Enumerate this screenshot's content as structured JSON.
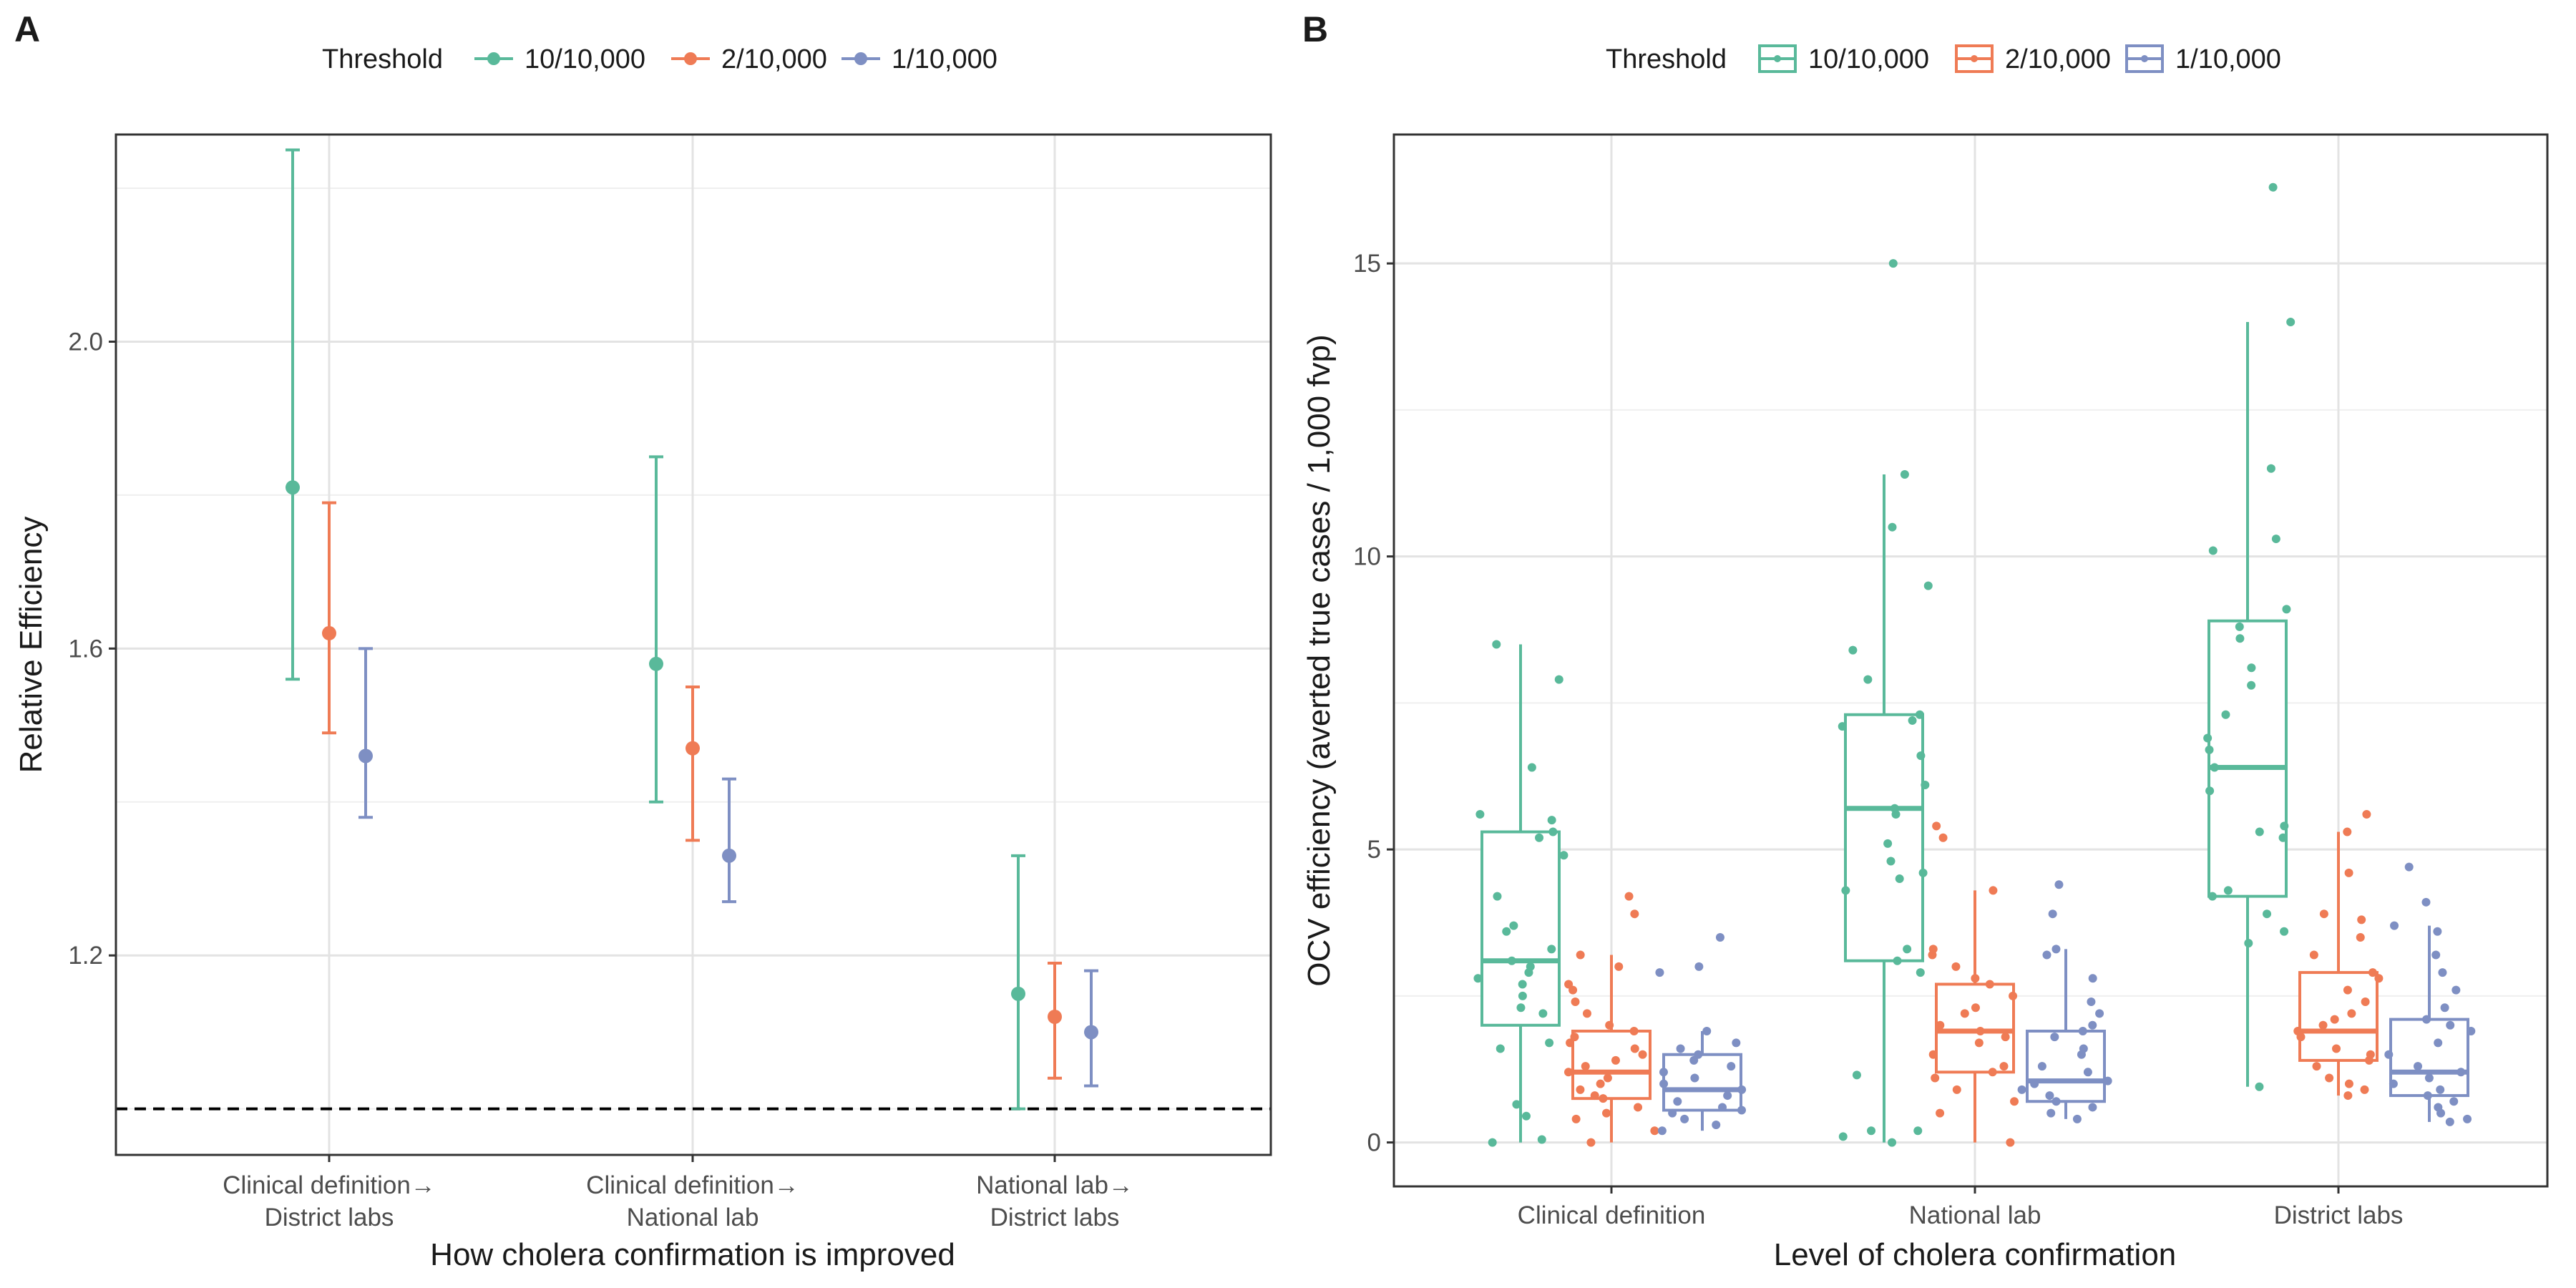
{
  "colors": {
    "t10": "#59b99a",
    "t2": "#ef7b55",
    "t1": "#7e8fc3",
    "grid_major": "#e3e3e3",
    "grid_minor": "#efefef",
    "frame": "#333333"
  },
  "chart_data": [
    {
      "panel": "A",
      "type": "scatter",
      "legend": {
        "title": "Threshold",
        "position": "top",
        "entries": [
          "10/10,000",
          "2/10,000",
          "1/10,000"
        ]
      },
      "xlabel": "How cholera confirmation is improved",
      "ylabel": "Relative Efficiency",
      "categories": [
        [
          "Clinical definition→",
          "District labs"
        ],
        [
          "Clinical definition→",
          "National lab"
        ],
        [
          "National lab→",
          "District labs"
        ]
      ],
      "yticks": [
        "1.2",
        "1.6",
        "2.0"
      ],
      "ylim": [
        0.94,
        2.27
      ],
      "reference_line": 1.0,
      "grid": true,
      "series": [
        {
          "name": "10/10,000",
          "points": [
            {
              "y": 1.81,
              "lo": 1.56,
              "hi": 2.25
            },
            {
              "y": 1.58,
              "lo": 1.4,
              "hi": 1.85
            },
            {
              "y": 1.15,
              "lo": 1.0,
              "hi": 1.33
            }
          ]
        },
        {
          "name": "2/10,000",
          "points": [
            {
              "y": 1.62,
              "lo": 1.49,
              "hi": 1.79
            },
            {
              "y": 1.47,
              "lo": 1.35,
              "hi": 1.55
            },
            {
              "y": 1.12,
              "lo": 1.04,
              "hi": 1.19
            }
          ]
        },
        {
          "name": "1/10,000",
          "points": [
            {
              "y": 1.46,
              "lo": 1.38,
              "hi": 1.6
            },
            {
              "y": 1.33,
              "lo": 1.27,
              "hi": 1.43
            },
            {
              "y": 1.1,
              "lo": 1.03,
              "hi": 1.18
            }
          ]
        }
      ]
    },
    {
      "panel": "B",
      "type": "box",
      "legend": {
        "title": "Threshold",
        "position": "top",
        "entries": [
          "10/10,000",
          "2/10,000",
          "1/10,000"
        ]
      },
      "xlabel": "Level of cholera confirmation",
      "ylabel": "OCV efficiency (averted true cases / 1,000 fvp)",
      "categories": [
        "Clinical definition",
        "National lab",
        "District labs"
      ],
      "yticks": [
        "0",
        "5",
        "10",
        "15"
      ],
      "ylim": [
        -0.75,
        17.2
      ],
      "grid": true,
      "series": [
        {
          "name": "10/10,000",
          "boxes": [
            {
              "min": 0.0,
              "q1": 2.0,
              "median": 3.1,
              "q3": 5.3,
              "max": 8.5,
              "points": [
                0.0,
                0.05,
                0.45,
                0.65,
                1.6,
                1.7,
                2.2,
                2.3,
                2.5,
                2.7,
                2.8,
                2.9,
                3.0,
                3.1,
                3.3,
                3.6,
                3.7,
                4.2,
                4.9,
                5.2,
                5.3,
                5.5,
                5.6,
                6.4,
                7.9,
                8.5
              ]
            },
            {
              "min": 0.0,
              "q1": 3.1,
              "median": 5.7,
              "q3": 7.3,
              "max": 11.4,
              "points": [
                0.0,
                0.1,
                0.2,
                0.2,
                1.15,
                2.9,
                3.1,
                3.3,
                4.3,
                4.5,
                4.6,
                4.8,
                5.1,
                5.6,
                5.7,
                6.1,
                6.6,
                7.1,
                7.2,
                7.3,
                7.9,
                8.4,
                9.5,
                10.5,
                11.4,
                15.0
              ]
            },
            {
              "min": 0.95,
              "q1": 4.2,
              "median": 6.4,
              "q3": 8.9,
              "max": 14.0,
              "points": [
                0.95,
                3.4,
                3.6,
                3.9,
                4.2,
                4.3,
                5.2,
                5.3,
                5.4,
                6.0,
                6.4,
                6.7,
                6.9,
                7.3,
                7.8,
                8.1,
                8.6,
                8.8,
                9.1,
                10.1,
                10.3,
                11.5,
                14.0,
                16.3
              ]
            }
          ]
        },
        {
          "name": "2/10,000",
          "boxes": [
            {
              "min": 0.0,
              "q1": 0.75,
              "median": 1.2,
              "q3": 1.9,
              "max": 3.2,
              "points": [
                0.0,
                0.2,
                0.4,
                0.5,
                0.6,
                0.75,
                0.8,
                0.9,
                1.0,
                1.1,
                1.2,
                1.3,
                1.4,
                1.5,
                1.6,
                1.7,
                1.8,
                1.9,
                2.0,
                2.2,
                2.4,
                2.6,
                2.7,
                3.0,
                3.2,
                3.9,
                4.2
              ]
            },
            {
              "min": 0.0,
              "q1": 1.2,
              "median": 1.9,
              "q3": 2.7,
              "max": 4.3,
              "points": [
                0.0,
                0.5,
                0.7,
                0.9,
                1.1,
                1.2,
                1.3,
                1.5,
                1.7,
                1.8,
                1.9,
                2.0,
                2.2,
                2.3,
                2.5,
                2.7,
                2.8,
                3.0,
                3.2,
                3.3,
                4.3,
                5.2,
                5.4
              ]
            },
            {
              "min": 0.8,
              "q1": 1.4,
              "median": 1.9,
              "q3": 2.9,
              "max": 5.3,
              "points": [
                0.8,
                0.9,
                1.0,
                1.1,
                1.3,
                1.4,
                1.5,
                1.6,
                1.8,
                1.9,
                2.0,
                2.1,
                2.2,
                2.4,
                2.6,
                2.8,
                2.9,
                3.2,
                3.5,
                3.8,
                3.9,
                4.6,
                5.3,
                5.6
              ]
            }
          ]
        },
        {
          "name": "1/10,000",
          "boxes": [
            {
              "min": 0.2,
              "q1": 0.55,
              "median": 0.9,
              "q3": 1.5,
              "max": 1.9,
              "points": [
                0.2,
                0.3,
                0.4,
                0.5,
                0.55,
                0.6,
                0.7,
                0.8,
                0.9,
                1.0,
                1.1,
                1.2,
                1.3,
                1.4,
                1.5,
                1.6,
                1.7,
                1.9,
                2.9,
                3.0,
                3.5
              ]
            },
            {
              "min": 0.4,
              "q1": 0.7,
              "median": 1.05,
              "q3": 1.9,
              "max": 3.3,
              "points": [
                0.4,
                0.5,
                0.6,
                0.7,
                0.8,
                0.9,
                1.0,
                1.05,
                1.2,
                1.3,
                1.5,
                1.6,
                1.8,
                1.9,
                2.0,
                2.2,
                2.4,
                2.8,
                3.2,
                3.3,
                3.9,
                4.4
              ]
            },
            {
              "min": 0.35,
              "q1": 0.8,
              "median": 1.2,
              "q3": 2.1,
              "max": 3.7,
              "points": [
                0.35,
                0.4,
                0.5,
                0.6,
                0.7,
                0.8,
                0.9,
                1.0,
                1.1,
                1.2,
                1.3,
                1.5,
                1.7,
                1.9,
                2.0,
                2.1,
                2.3,
                2.6,
                2.9,
                3.2,
                3.6,
                3.7,
                4.1,
                4.7
              ]
            }
          ]
        }
      ]
    }
  ]
}
